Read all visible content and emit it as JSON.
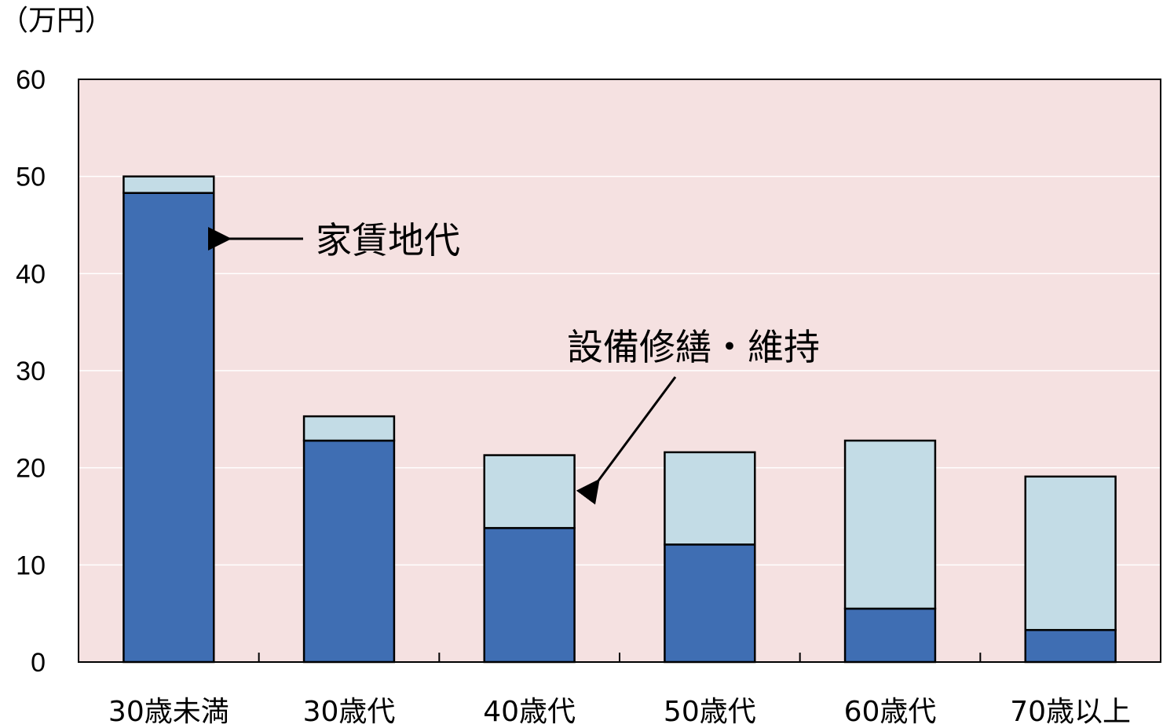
{
  "chart_data": {
    "type": "bar",
    "stacked": true,
    "unit_label": "（万円）",
    "categories": [
      "30歳未満",
      "30歳代",
      "40歳代",
      "50歳代",
      "60歳代",
      "70歳以上"
    ],
    "series": [
      {
        "name": "家賃地代",
        "values": [
          48.3,
          22.8,
          13.8,
          12.1,
          5.5,
          3.3
        ],
        "color": "#3f6eb3"
      },
      {
        "name": "設備修繕・維持",
        "values": [
          1.7,
          2.5,
          7.5,
          9.5,
          17.3,
          15.8
        ],
        "color": "#c3dce6"
      }
    ],
    "ylim": [
      0,
      60
    ],
    "yticks": [
      0,
      10,
      20,
      30,
      40,
      50,
      60
    ],
    "grid": true,
    "plot_background": "#f5e1e1",
    "annotations": [
      {
        "text": "家賃地代",
        "series": 0,
        "category_index": 0
      },
      {
        "text": "設備修繕・維持",
        "series": 1,
        "category_index": 2
      }
    ]
  }
}
